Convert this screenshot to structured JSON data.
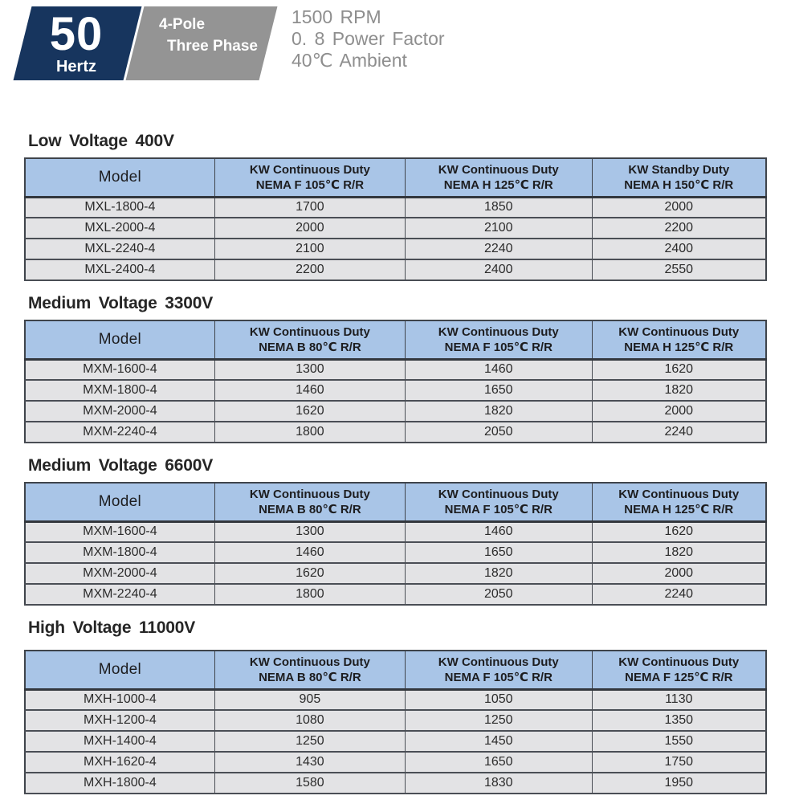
{
  "badge": {
    "frequency": "50",
    "frequency_unit": "Hertz",
    "pole": "4-Pole",
    "phase": "Three Phase"
  },
  "specs": {
    "rpm": "1500 RPM",
    "power_factor": "0. 8 Power Factor",
    "ambient": "40℃ Ambient"
  },
  "colors": {
    "badge_navy": "#17355e",
    "badge_gray": "#949494",
    "spec_text_gray": "#8e8e8e",
    "table_header_blue": "#a9c5e7",
    "table_row_gray": "#e3e3e5",
    "table_border": "#3f444b"
  },
  "sections": [
    {
      "title": "Low Voltage 400V",
      "columns": [
        [
          "Model"
        ],
        [
          "KW Continuous Duty",
          "NEMA F 105℃ R/R"
        ],
        [
          "KW Continuous Duty",
          "NEMA H 125℃ R/R"
        ],
        [
          "KW Standby Duty",
          "NEMA H 150℃ R/R"
        ]
      ],
      "rows": [
        [
          "MXL-1800-4",
          "1700",
          "1850",
          "2000"
        ],
        [
          "MXL-2000-4",
          "2000",
          "2100",
          "2200"
        ],
        [
          "MXL-2240-4",
          "2100",
          "2240",
          "2400"
        ],
        [
          "MXL-2400-4",
          "2200",
          "2400",
          "2550"
        ]
      ]
    },
    {
      "title": "Medium Voltage 3300V",
      "columns": [
        [
          "Model"
        ],
        [
          "KW Continuous Duty",
          "NEMA B 80℃ R/R"
        ],
        [
          "KW Continuous Duty",
          "NEMA F 105℃ R/R"
        ],
        [
          "KW Continuous Duty",
          "NEMA H 125℃ R/R"
        ]
      ],
      "rows": [
        [
          "MXM-1600-4",
          "1300",
          "1460",
          "1620"
        ],
        [
          "MXM-1800-4",
          "1460",
          "1650",
          "1820"
        ],
        [
          "MXM-2000-4",
          "1620",
          "1820",
          "2000"
        ],
        [
          "MXM-2240-4",
          "1800",
          "2050",
          "2240"
        ]
      ]
    },
    {
      "title": "Medium Voltage 6600V",
      "columns": [
        [
          "Model"
        ],
        [
          "KW Continuous Duty",
          "NEMA B 80℃ R/R"
        ],
        [
          "KW Continuous Duty",
          "NEMA F 105℃ R/R"
        ],
        [
          "KW Continuous Duty",
          "NEMA H 125℃ R/R"
        ]
      ],
      "rows": [
        [
          "MXM-1600-4",
          "1300",
          "1460",
          "1620"
        ],
        [
          "MXM-1800-4",
          "1460",
          "1650",
          "1820"
        ],
        [
          "MXM-2000-4",
          "1620",
          "1820",
          "2000"
        ],
        [
          "MXM-2240-4",
          "1800",
          "2050",
          "2240"
        ]
      ]
    },
    {
      "title": "High Voltage 11000V",
      "columns": [
        [
          "Model"
        ],
        [
          "KW Continuous Duty",
          "NEMA B 80℃ R/R"
        ],
        [
          "KW Continuous Duty",
          "NEMA F 105℃ R/R"
        ],
        [
          "KW Continuous Duty",
          "NEMA F 125℃ R/R"
        ]
      ],
      "rows": [
        [
          "MXH-1000-4",
          "905",
          "1050",
          "1130"
        ],
        [
          "MXH-1200-4",
          "1080",
          "1250",
          "1350"
        ],
        [
          "MXH-1400-4",
          "1250",
          "1450",
          "1550"
        ],
        [
          "MXH-1620-4",
          "1430",
          "1650",
          "1750"
        ],
        [
          "MXH-1800-4",
          "1580",
          "1830",
          "1950"
        ]
      ]
    }
  ]
}
